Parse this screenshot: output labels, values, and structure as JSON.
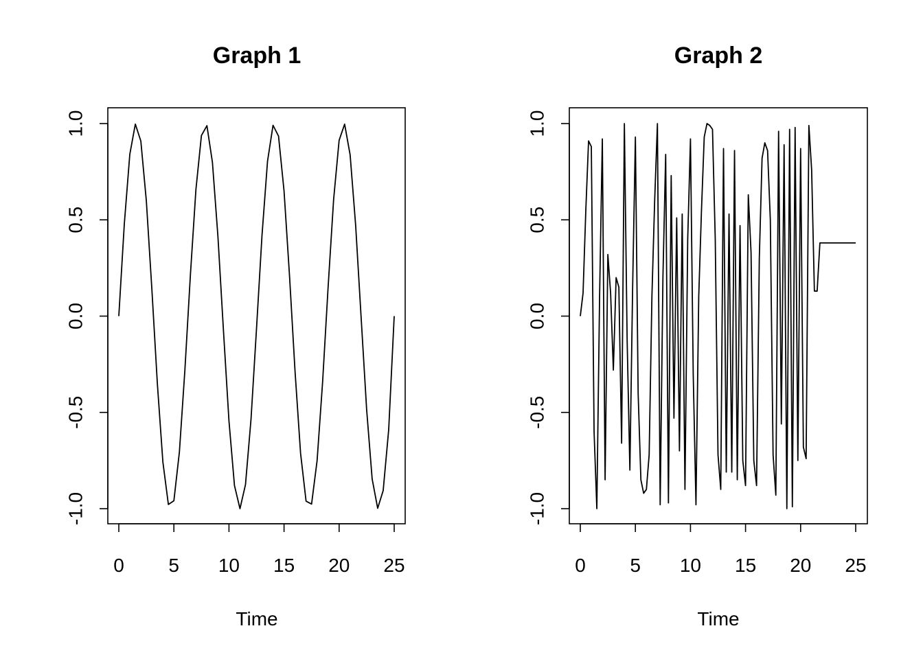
{
  "chart_data": [
    {
      "type": "line",
      "title": "Graph 1",
      "xlabel": "Time",
      "ylabel": "",
      "xlim": [
        0,
        25
      ],
      "ylim": [
        -1,
        1
      ],
      "xticks": [
        "0",
        "5",
        "10",
        "15",
        "20",
        "25"
      ],
      "yticks": [
        "-1.0",
        "-0.5",
        "0.0",
        "0.5",
        "1.0"
      ],
      "grid": false,
      "series": [
        {
          "x": [
            0.0,
            0.5,
            1.0,
            1.5,
            2.0,
            2.5,
            3.0,
            3.5,
            4.0,
            4.5,
            5.0,
            5.5,
            6.0,
            6.5,
            7.0,
            7.5,
            8.0,
            8.5,
            9.0,
            9.5,
            10.0,
            10.5,
            11.0,
            11.5,
            12.0,
            12.5,
            13.0,
            13.5,
            14.0,
            14.5,
            15.0,
            15.5,
            16.0,
            16.5,
            17.0,
            17.5,
            18.0,
            18.5,
            19.0,
            19.5,
            20.0,
            20.5,
            21.0,
            21.5,
            22.0,
            22.5,
            23.0,
            23.5,
            24.0,
            24.5,
            25.0
          ],
          "y": [
            0.0,
            0.479,
            0.841,
            0.997,
            0.909,
            0.598,
            0.141,
            -0.351,
            -0.757,
            -0.978,
            -0.959,
            -0.706,
            -0.279,
            0.215,
            0.657,
            0.938,
            0.989,
            0.798,
            0.412,
            -0.075,
            -0.544,
            -0.88,
            -1.0,
            -0.875,
            -0.537,
            -0.066,
            0.42,
            0.804,
            0.991,
            0.935,
            0.65,
            0.207,
            -0.288,
            -0.712,
            -0.961,
            -0.976,
            -0.751,
            -0.343,
            0.15,
            0.605,
            0.913,
            0.997,
            0.837,
            0.472,
            -0.009,
            -0.487,
            -0.846,
            -0.998,
            -0.906,
            -0.59,
            0.0
          ]
        }
      ]
    },
    {
      "type": "line",
      "title": "Graph 2",
      "xlabel": "Time",
      "ylabel": "",
      "xlim": [
        0,
        25
      ],
      "ylim": [
        -1,
        1
      ],
      "xticks": [
        "0",
        "5",
        "10",
        "15",
        "20",
        "25"
      ],
      "yticks": [
        "-1.0",
        "-0.5",
        "0.0",
        "0.5",
        "1.0"
      ],
      "grid": false,
      "series": [
        {
          "x": [
            0.0,
            0.25,
            0.5,
            0.75,
            1.0,
            1.25,
            1.5,
            1.75,
            2.0,
            2.25,
            2.5,
            2.75,
            3.0,
            3.25,
            3.5,
            3.75,
            4.0,
            4.25,
            4.5,
            4.75,
            5.0,
            5.25,
            5.5,
            5.75,
            6.0,
            6.25,
            6.5,
            6.75,
            7.0,
            7.25,
            7.5,
            7.75,
            8.0,
            8.25,
            8.5,
            8.75,
            9.0,
            9.25,
            9.5,
            9.75,
            10.0,
            10.25,
            10.5,
            10.75,
            11.0,
            11.25,
            11.5,
            11.75,
            12.0,
            12.25,
            12.5,
            12.75,
            13.0,
            13.25,
            13.5,
            13.75,
            14.0,
            14.25,
            14.5,
            14.75,
            15.0,
            15.25,
            15.5,
            15.75,
            16.0,
            16.25,
            16.5,
            16.75,
            17.0,
            17.25,
            17.5,
            17.75,
            18.0,
            18.25,
            18.5,
            18.75,
            19.0,
            19.25,
            19.5,
            19.75,
            20.0,
            20.25,
            20.5,
            20.75,
            21.0,
            21.25,
            21.5,
            21.75,
            22.0,
            22.25,
            22.5,
            22.75,
            23.0,
            23.25,
            23.5,
            23.75,
            24.0,
            24.25,
            24.5,
            24.75,
            25.0
          ],
          "y": [
            0.0,
            0.12,
            0.55,
            0.91,
            0.88,
            -0.6,
            -1.0,
            0.1,
            0.92,
            -0.85,
            0.32,
            0.12,
            -0.28,
            0.2,
            0.15,
            -0.66,
            1.0,
            -0.12,
            -0.8,
            0.15,
            0.93,
            -0.4,
            -0.85,
            -0.92,
            -0.9,
            -0.72,
            0.1,
            0.6,
            1.0,
            -0.98,
            0.2,
            0.84,
            -0.97,
            0.73,
            -0.53,
            0.51,
            -0.7,
            0.53,
            -0.9,
            0.4,
            0.92,
            -0.3,
            -0.98,
            0.1,
            0.55,
            0.93,
            1.0,
            0.99,
            0.97,
            0.4,
            -0.72,
            -0.9,
            0.87,
            -0.81,
            0.53,
            -0.81,
            0.86,
            -0.85,
            0.47,
            -0.75,
            -0.88,
            0.63,
            0.33,
            -0.75,
            -0.88,
            0.3,
            0.82,
            0.9,
            0.86,
            0.5,
            -0.72,
            -0.93,
            0.96,
            -0.56,
            0.89,
            -1.0,
            0.97,
            -0.99,
            0.98,
            -0.75,
            0.87,
            -0.68,
            -0.74,
            0.99,
            0.76,
            0.13,
            0.13,
            0.38,
            0.38,
            0.38,
            0.38,
            0.38,
            0.38,
            0.38,
            0.38,
            0.38,
            0.38,
            0.38,
            0.38,
            0.38,
            0.38
          ]
        }
      ]
    }
  ]
}
